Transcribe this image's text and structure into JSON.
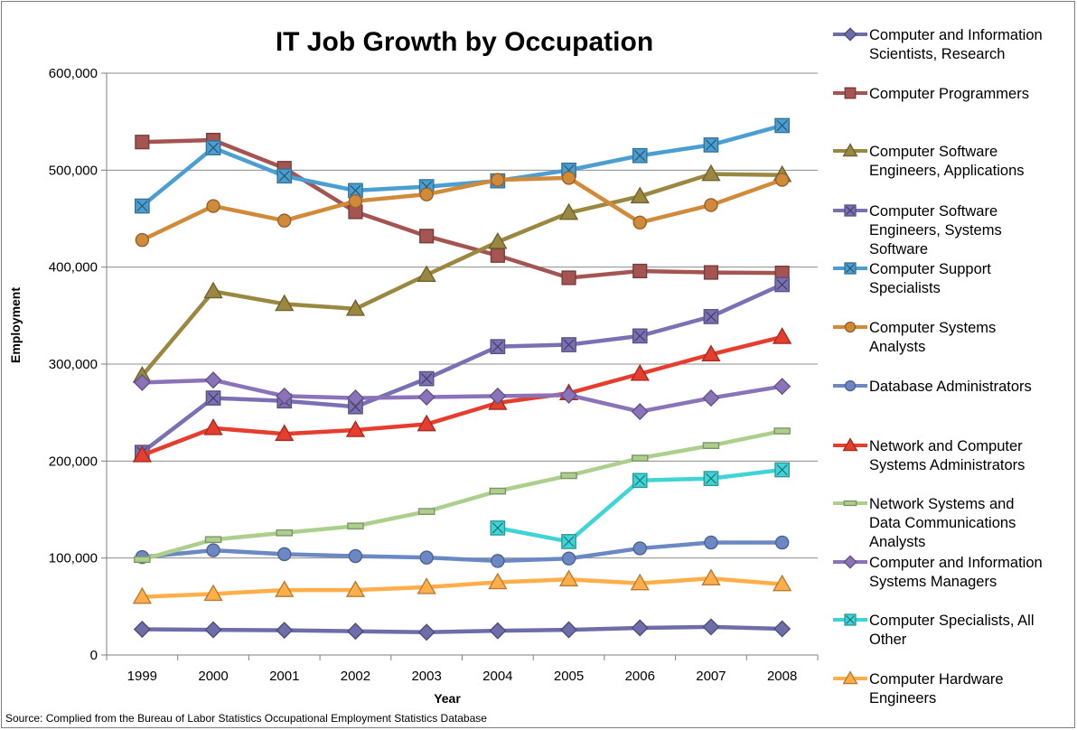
{
  "chart_data": {
    "type": "line",
    "title": "IT Job Growth by Occupation",
    "xlabel": "Year",
    "ylabel": "Employment",
    "source": "Source: Complied from the Bureau of Labor Statistics Occupational Employment Statistics Database",
    "ylim": [
      0,
      600000
    ],
    "y_ticks": [
      0,
      100000,
      200000,
      300000,
      400000,
      500000,
      600000
    ],
    "y_tick_labels": [
      "0",
      "100,000",
      "200,000",
      "300,000",
      "400,000",
      "500,000",
      "600,000"
    ],
    "categories": [
      "1999",
      "2000",
      "2001",
      "2002",
      "2003",
      "2004",
      "2005",
      "2006",
      "2007",
      "2008"
    ],
    "grid": true,
    "legend_position": "right",
    "series": [
      {
        "name": "Computer and Information Scientists, Research",
        "legend_lines": [
          "Computer and Information",
          "Scientists, Research"
        ],
        "color": "#6d6da9",
        "marker": "diamond",
        "values": [
          26500,
          26000,
          25500,
          24500,
          23500,
          25000,
          26000,
          28000,
          29000,
          27000
        ]
      },
      {
        "name": "Computer Programmers",
        "legend_lines": [
          "Computer Programmers"
        ],
        "color": "#a45552",
        "marker": "square",
        "values": [
          529000,
          531000,
          502000,
          457000,
          432000,
          412000,
          389000,
          396000,
          394500,
          394000
        ]
      },
      {
        "name": "Computer Software Engineers, Applications",
        "legend_lines": [
          "Computer Software",
          "Engineers, Applications"
        ],
        "color": "#9b8840",
        "marker": "triangle",
        "values": [
          288000,
          375000,
          362000,
          357000,
          392000,
          426000,
          456000,
          473000,
          496000,
          495000
        ]
      },
      {
        "name": "Computer Software Engineers, Systems Software",
        "legend_lines": [
          "Computer Software",
          "Engineers, Systems",
          "Software"
        ],
        "color": "#7b70b3",
        "marker": "xsquare",
        "values": [
          209000,
          265000,
          262000,
          256000,
          285000,
          318000,
          320000,
          329000,
          349000,
          382000
        ]
      },
      {
        "name": "Computer Support Specialists",
        "legend_lines": [
          "Computer Support",
          "Specialists"
        ],
        "color": "#4a9ed1",
        "marker": "xsquare",
        "values": [
          463000,
          523000,
          494000,
          479000,
          483000,
          489000,
          500000,
          515000,
          526000,
          546000
        ]
      },
      {
        "name": "Computer Systems Analysts",
        "legend_lines": [
          "Computer Systems",
          "Analysts"
        ],
        "color": "#d08a3a",
        "marker": "circle",
        "values": [
          428000,
          463000,
          448000,
          468000,
          475000,
          490000,
          492000,
          446000,
          464000,
          490000
        ]
      },
      {
        "name": "Database Administrators",
        "legend_lines": [
          "Database Administrators"
        ],
        "color": "#6b88c4",
        "marker": "circle",
        "values": [
          101000,
          108000,
          104000,
          102000,
          100500,
          97000,
          99500,
          110000,
          116000,
          116000
        ]
      },
      {
        "name": "Network and Computer Systems Administrators",
        "legend_lines": [
          "Network and Computer",
          "Systems Administrators"
        ],
        "color": "#e53d2e",
        "marker": "triangle",
        "values": [
          206000,
          234000,
          228000,
          232000,
          238000,
          260000,
          270000,
          290000,
          310000,
          328000
        ]
      },
      {
        "name": "Network Systems and Data Communications Analysts",
        "legend_lines": [
          "Network Systems and",
          "Data Communications",
          "Analysts"
        ],
        "color": "#adcf8d",
        "marker": "dash",
        "values": [
          98500,
          119000,
          126000,
          133000,
          148000,
          169000,
          185000,
          203000,
          216000,
          231000
        ]
      },
      {
        "name": "Computer and Information Systems Managers",
        "legend_lines": [
          "Computer and Information",
          "Systems Managers"
        ],
        "color": "#8a73b8",
        "marker": "diamond",
        "values": [
          281000,
          283500,
          267000,
          265000,
          266000,
          267000,
          268000,
          251000,
          265000,
          277000
        ]
      },
      {
        "name": "Computer Specialists, All Other",
        "legend_lines": [
          "Computer Specialists, All",
          "Other"
        ],
        "color": "#3fd4d6",
        "marker": "xsquare",
        "values": [
          null,
          null,
          null,
          null,
          null,
          131000,
          117000,
          180000,
          182000,
          191000
        ]
      },
      {
        "name": "Computer Hardware Engineers",
        "legend_lines": [
          "Computer Hardware",
          "Engineers"
        ],
        "color": "#ffae4a",
        "marker": "triangle",
        "values": [
          60000,
          63000,
          67000,
          67000,
          70000,
          75000,
          78000,
          74000,
          79000,
          73000
        ]
      }
    ]
  }
}
